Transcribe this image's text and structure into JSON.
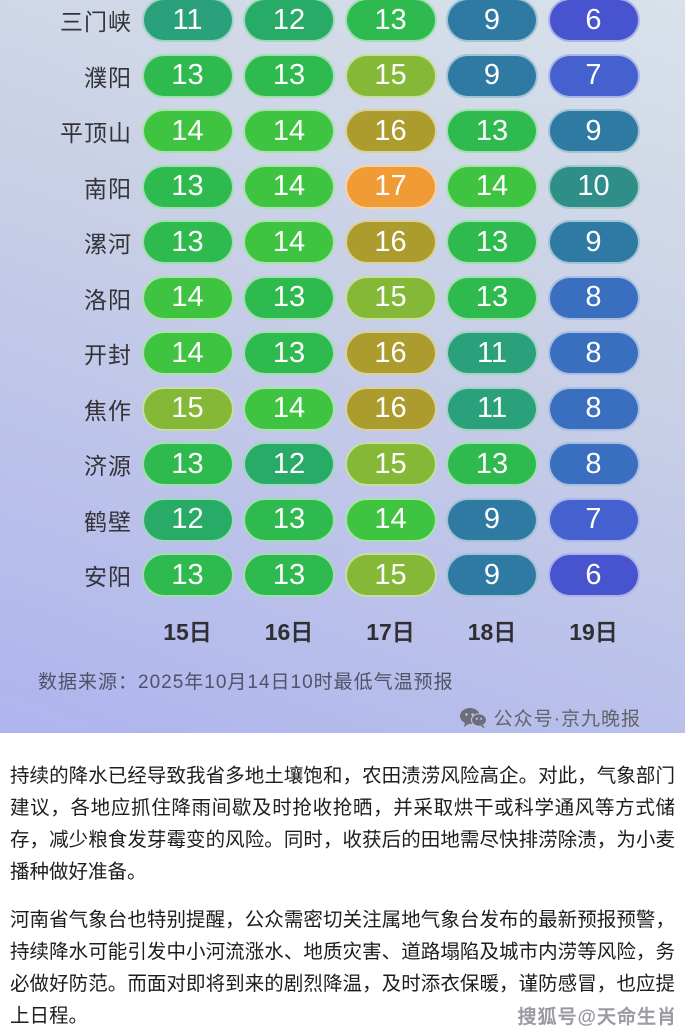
{
  "infographic": {
    "source": "数据来源：2025年10月14日10时最低气温预报",
    "credit": "公众号·京九晚报"
  },
  "temp_colors": {
    "6": "#4753cf",
    "7": "#4560cf",
    "8": "#3a6fc0",
    "9": "#2e7aa3",
    "10": "#2f8f88",
    "11": "#2aa17b",
    "12": "#27ab66",
    "13": "#2eba4e",
    "14": "#3ec441",
    "15": "#85b836",
    "16": "#ac9c2e",
    "17": "#f09b35"
  },
  "chart_data": {
    "type": "heatmap",
    "columns": [
      "15日",
      "16日",
      "17日",
      "18日",
      "19日"
    ],
    "rows": [
      {
        "city": "三门峡",
        "values": [
          11,
          12,
          13,
          9,
          6
        ]
      },
      {
        "city": "濮阳",
        "values": [
          13,
          13,
          15,
          9,
          7
        ]
      },
      {
        "city": "平顶山",
        "values": [
          14,
          14,
          16,
          13,
          9
        ]
      },
      {
        "city": "南阳",
        "values": [
          13,
          14,
          17,
          14,
          10
        ]
      },
      {
        "city": "漯河",
        "values": [
          13,
          14,
          16,
          13,
          9
        ]
      },
      {
        "city": "洛阳",
        "values": [
          14,
          13,
          15,
          13,
          8
        ]
      },
      {
        "city": "开封",
        "values": [
          14,
          13,
          16,
          11,
          8
        ]
      },
      {
        "city": "焦作",
        "values": [
          15,
          14,
          16,
          11,
          8
        ]
      },
      {
        "city": "济源",
        "values": [
          13,
          12,
          15,
          13,
          8
        ]
      },
      {
        "city": "鹤壁",
        "values": [
          12,
          13,
          14,
          9,
          7
        ]
      },
      {
        "city": "安阳",
        "values": [
          13,
          13,
          15,
          9,
          6
        ]
      }
    ],
    "value_meaning": "最低气温预报",
    "source": "数据来源：2025年10月14日10时最低气温预报",
    "legend_position": "none",
    "grid": false
  },
  "article": {
    "p1": "持续的降水已经导致我省多地土壤饱和，农田渍涝风险高企。对此，气象部门建议，各地应抓住降雨间歇及时抢收抢晒，并采取烘干或科学通风等方式储存，减少粮食发芽霉变的风险。同时，收获后的田地需尽快排涝除渍，为小麦播种做好准备。",
    "p2": "河南省气象台也特别提醒，公众需密切关注属地气象台发布的最新预报预警，持续降水可能引发中小河流涨水、地质灾害、道路塌陷及城市内涝等风险，务必做好防范。而面对即将到来的剧烈降温，及时添衣保暖，谨防感冒，也应提上日程。",
    "watermark": "搜狐号@天命生肖"
  }
}
